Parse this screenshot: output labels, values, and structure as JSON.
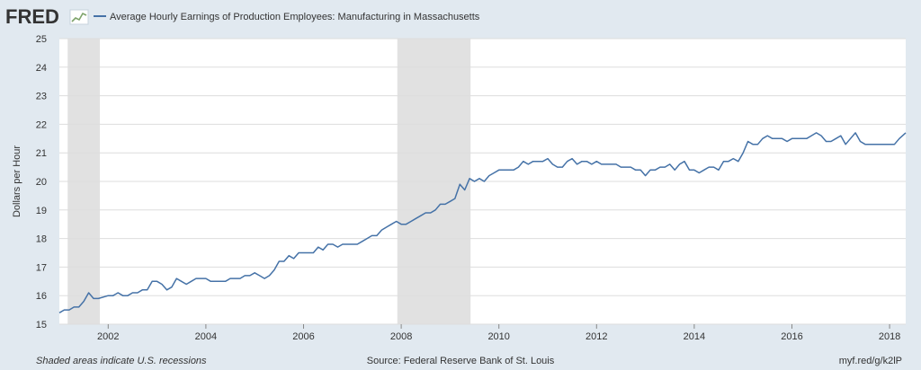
{
  "header": {
    "logo_text": "FRED",
    "legend_label": "Average Hourly Earnings of Production Employees: Manufacturing in Massachusetts"
  },
  "footer": {
    "recessions_note": "Shaded areas indicate U.S. recessions",
    "source": "Source: Federal Reserve Bank of St. Louis",
    "short_url": "myf.red/g/k2lP"
  },
  "colors": {
    "background": "#e1e9f0",
    "plot_background": "#ffffff",
    "series": "#4572a7",
    "recession": "#e1e1e1",
    "grid": "#dddddd"
  },
  "chart_data": {
    "type": "line",
    "title": "",
    "xlabel": "",
    "ylabel": "Dollars per Hour",
    "xlim": [
      2001.0,
      2018.33
    ],
    "ylim": [
      15,
      25
    ],
    "x_ticks": [
      2002,
      2004,
      2006,
      2008,
      2010,
      2012,
      2014,
      2016,
      2018
    ],
    "x_tick_labels": [
      "2002",
      "2004",
      "2006",
      "2008",
      "2010",
      "2012",
      "2014",
      "2016",
      "2018"
    ],
    "y_ticks": [
      15,
      16,
      17,
      18,
      19,
      20,
      21,
      22,
      23,
      24,
      25
    ],
    "y_tick_labels": [
      "15",
      "16",
      "17",
      "18",
      "19",
      "20",
      "21",
      "22",
      "23",
      "24",
      "25"
    ],
    "grid": "horizontal",
    "recessions": [
      {
        "start": 2001.17,
        "end": 2001.83
      },
      {
        "start": 2007.92,
        "end": 2009.42
      }
    ],
    "series": [
      {
        "name": "Average Hourly Earnings of Production Employees: Manufacturing in Massachusetts",
        "points": [
          [
            2001.0,
            15.4
          ],
          [
            2001.1,
            15.5
          ],
          [
            2001.2,
            15.5
          ],
          [
            2001.3,
            15.6
          ],
          [
            2001.4,
            15.6
          ],
          [
            2001.5,
            15.8
          ],
          [
            2001.6,
            16.1
          ],
          [
            2001.7,
            15.9
          ],
          [
            2001.8,
            15.9
          ],
          [
            2002.0,
            16.0
          ],
          [
            2002.1,
            16.0
          ],
          [
            2002.2,
            16.1
          ],
          [
            2002.3,
            16.0
          ],
          [
            2002.4,
            16.0
          ],
          [
            2002.5,
            16.1
          ],
          [
            2002.6,
            16.1
          ],
          [
            2002.7,
            16.2
          ],
          [
            2002.8,
            16.2
          ],
          [
            2002.9,
            16.5
          ],
          [
            2003.0,
            16.5
          ],
          [
            2003.1,
            16.4
          ],
          [
            2003.2,
            16.2
          ],
          [
            2003.3,
            16.3
          ],
          [
            2003.4,
            16.6
          ],
          [
            2003.5,
            16.5
          ],
          [
            2003.6,
            16.4
          ],
          [
            2003.7,
            16.5
          ],
          [
            2003.8,
            16.6
          ],
          [
            2004.0,
            16.6
          ],
          [
            2004.1,
            16.5
          ],
          [
            2004.2,
            16.5
          ],
          [
            2004.3,
            16.5
          ],
          [
            2004.4,
            16.5
          ],
          [
            2004.5,
            16.6
          ],
          [
            2004.6,
            16.6
          ],
          [
            2004.7,
            16.6
          ],
          [
            2004.8,
            16.7
          ],
          [
            2004.9,
            16.7
          ],
          [
            2005.0,
            16.8
          ],
          [
            2005.1,
            16.7
          ],
          [
            2005.2,
            16.6
          ],
          [
            2005.3,
            16.7
          ],
          [
            2005.4,
            16.9
          ],
          [
            2005.5,
            17.2
          ],
          [
            2005.6,
            17.2
          ],
          [
            2005.7,
            17.4
          ],
          [
            2005.8,
            17.3
          ],
          [
            2005.9,
            17.5
          ],
          [
            2006.0,
            17.5
          ],
          [
            2006.1,
            17.5
          ],
          [
            2006.2,
            17.5
          ],
          [
            2006.3,
            17.7
          ],
          [
            2006.4,
            17.6
          ],
          [
            2006.5,
            17.8
          ],
          [
            2006.6,
            17.8
          ],
          [
            2006.7,
            17.7
          ],
          [
            2006.8,
            17.8
          ],
          [
            2006.9,
            17.8
          ],
          [
            2007.0,
            17.8
          ],
          [
            2007.1,
            17.8
          ],
          [
            2007.2,
            17.9
          ],
          [
            2007.3,
            18.0
          ],
          [
            2007.4,
            18.1
          ],
          [
            2007.5,
            18.1
          ],
          [
            2007.6,
            18.3
          ],
          [
            2007.7,
            18.4
          ],
          [
            2007.8,
            18.5
          ],
          [
            2007.9,
            18.6
          ],
          [
            2008.0,
            18.5
          ],
          [
            2008.1,
            18.5
          ],
          [
            2008.2,
            18.6
          ],
          [
            2008.3,
            18.7
          ],
          [
            2008.4,
            18.8
          ],
          [
            2008.5,
            18.9
          ],
          [
            2008.6,
            18.9
          ],
          [
            2008.7,
            19.0
          ],
          [
            2008.8,
            19.2
          ],
          [
            2008.9,
            19.2
          ],
          [
            2009.0,
            19.3
          ],
          [
            2009.1,
            19.4
          ],
          [
            2009.2,
            19.9
          ],
          [
            2009.3,
            19.7
          ],
          [
            2009.4,
            20.1
          ],
          [
            2009.5,
            20.0
          ],
          [
            2009.6,
            20.1
          ],
          [
            2009.7,
            20.0
          ],
          [
            2009.8,
            20.2
          ],
          [
            2009.9,
            20.3
          ],
          [
            2010.0,
            20.4
          ],
          [
            2010.1,
            20.4
          ],
          [
            2010.2,
            20.4
          ],
          [
            2010.3,
            20.4
          ],
          [
            2010.4,
            20.5
          ],
          [
            2010.5,
            20.7
          ],
          [
            2010.6,
            20.6
          ],
          [
            2010.7,
            20.7
          ],
          [
            2010.8,
            20.7
          ],
          [
            2010.9,
            20.7
          ],
          [
            2011.0,
            20.8
          ],
          [
            2011.1,
            20.6
          ],
          [
            2011.2,
            20.5
          ],
          [
            2011.3,
            20.5
          ],
          [
            2011.4,
            20.7
          ],
          [
            2011.5,
            20.8
          ],
          [
            2011.6,
            20.6
          ],
          [
            2011.7,
            20.7
          ],
          [
            2011.8,
            20.7
          ],
          [
            2011.9,
            20.6
          ],
          [
            2012.0,
            20.7
          ],
          [
            2012.1,
            20.6
          ],
          [
            2012.2,
            20.6
          ],
          [
            2012.3,
            20.6
          ],
          [
            2012.4,
            20.6
          ],
          [
            2012.5,
            20.5
          ],
          [
            2012.6,
            20.5
          ],
          [
            2012.7,
            20.5
          ],
          [
            2012.8,
            20.4
          ],
          [
            2012.9,
            20.4
          ],
          [
            2013.0,
            20.2
          ],
          [
            2013.1,
            20.4
          ],
          [
            2013.2,
            20.4
          ],
          [
            2013.3,
            20.5
          ],
          [
            2013.4,
            20.5
          ],
          [
            2013.5,
            20.6
          ],
          [
            2013.6,
            20.4
          ],
          [
            2013.7,
            20.6
          ],
          [
            2013.8,
            20.7
          ],
          [
            2013.9,
            20.4
          ],
          [
            2014.0,
            20.4
          ],
          [
            2014.1,
            20.3
          ],
          [
            2014.2,
            20.4
          ],
          [
            2014.3,
            20.5
          ],
          [
            2014.4,
            20.5
          ],
          [
            2014.5,
            20.4
          ],
          [
            2014.6,
            20.7
          ],
          [
            2014.7,
            20.7
          ],
          [
            2014.8,
            20.8
          ],
          [
            2014.9,
            20.7
          ],
          [
            2015.0,
            21.0
          ],
          [
            2015.1,
            21.4
          ],
          [
            2015.2,
            21.3
          ],
          [
            2015.3,
            21.3
          ],
          [
            2015.4,
            21.5
          ],
          [
            2015.5,
            21.6
          ],
          [
            2015.6,
            21.5
          ],
          [
            2015.7,
            21.5
          ],
          [
            2015.8,
            21.5
          ],
          [
            2015.9,
            21.4
          ],
          [
            2016.0,
            21.5
          ],
          [
            2016.1,
            21.5
          ],
          [
            2016.2,
            21.5
          ],
          [
            2016.3,
            21.5
          ],
          [
            2016.4,
            21.6
          ],
          [
            2016.5,
            21.7
          ],
          [
            2016.6,
            21.6
          ],
          [
            2016.7,
            21.4
          ],
          [
            2016.8,
            21.4
          ],
          [
            2016.9,
            21.5
          ],
          [
            2017.0,
            21.6
          ],
          [
            2017.1,
            21.3
          ],
          [
            2017.2,
            21.5
          ],
          [
            2017.3,
            21.7
          ],
          [
            2017.4,
            21.4
          ],
          [
            2017.5,
            21.3
          ],
          [
            2017.6,
            21.3
          ],
          [
            2017.7,
            21.3
          ],
          [
            2017.8,
            21.3
          ],
          [
            2017.9,
            21.3
          ],
          [
            2018.0,
            21.3
          ],
          [
            2018.1,
            21.3
          ],
          [
            2018.2,
            21.5
          ],
          [
            2018.33,
            21.7
          ]
        ]
      }
    ]
  }
}
